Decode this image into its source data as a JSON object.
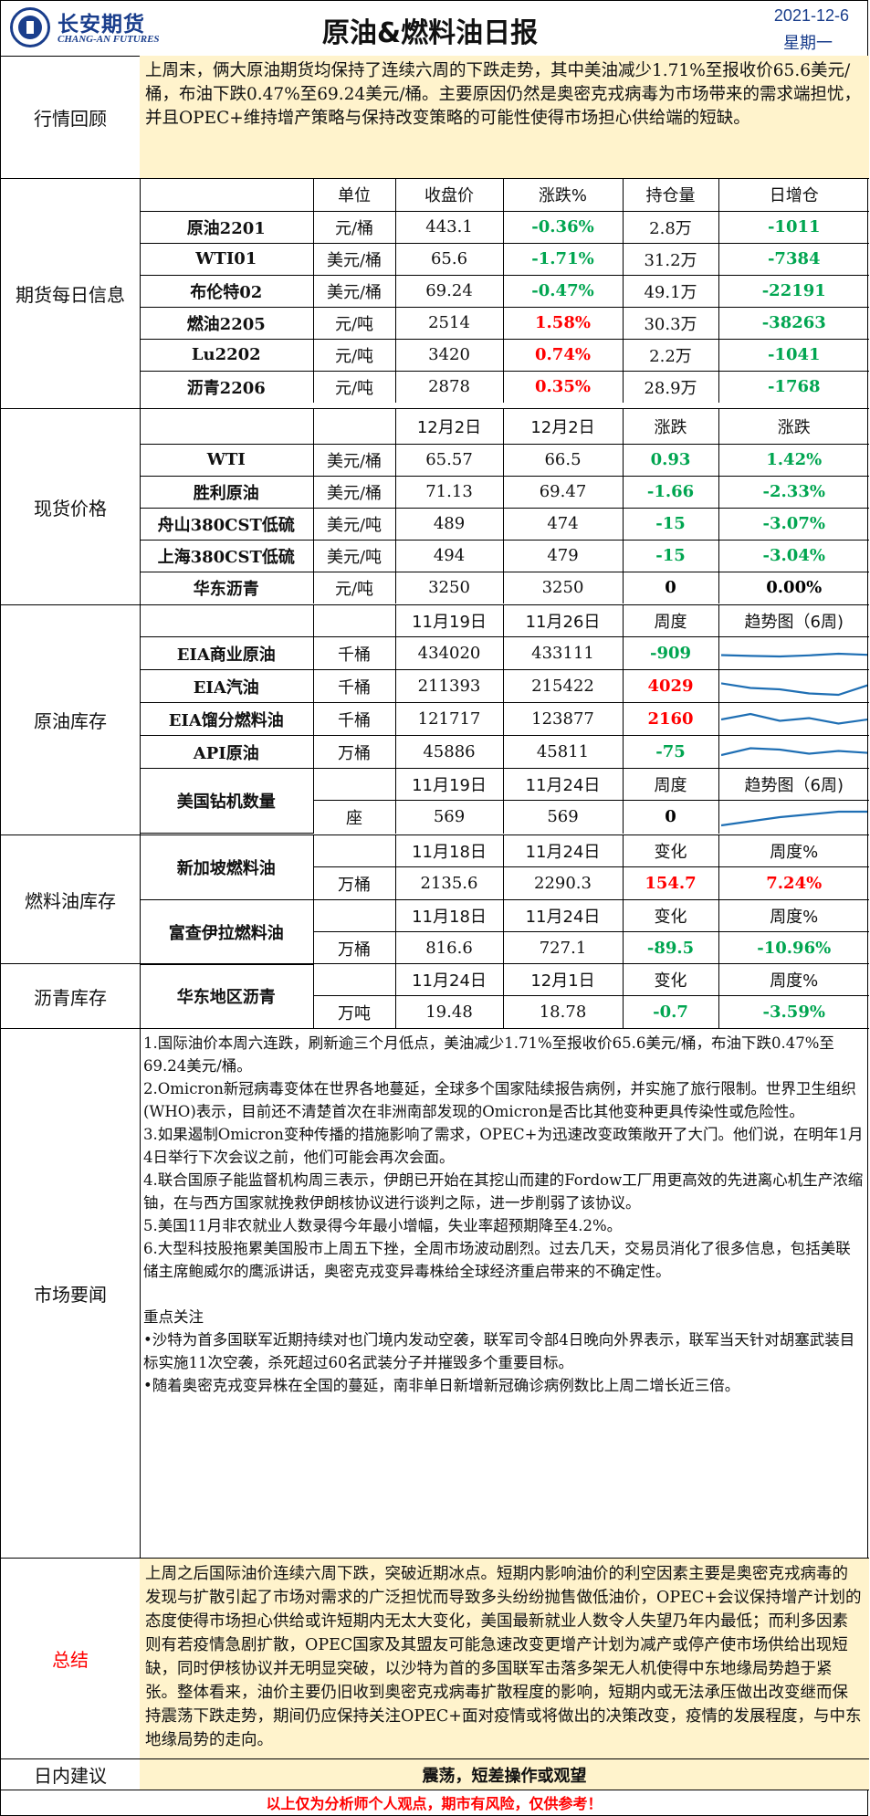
{
  "header": {
    "logo_cn": "长安期货",
    "logo_en": "CHANG-AN FUTURES",
    "title": "原油&燃料油日报",
    "date": "2021-12-6",
    "weekday": "星期一"
  },
  "review": {
    "label": "行情回顾",
    "text": "上周末，俩大原油期货均保持了连续六周的下跌走势，其中美油减少1.71%至报收价65.6美元/桶，布油下跌0.47%至69.24美元/桶。主要原因仍然是奥密克戎病毒为市场带来的需求端担忧，并且OPEC+维持增产策略与保持改变策略的可能性使得市场担心供给端的短缺。"
  },
  "futures": {
    "label": "期货每日信息",
    "headers": [
      "",
      "单位",
      "收盘价",
      "涨跌%",
      "持仓量",
      "日增仓"
    ],
    "rows": [
      {
        "name": "原油2201",
        "unit": "元/桶",
        "close": "443.1",
        "chg": "-0.36%",
        "oi": "2.8万",
        "doi": "-1011"
      },
      {
        "name": "WTI01",
        "unit": "美元/桶",
        "close": "65.6",
        "chg": "-1.71%",
        "oi": "31.2万",
        "doi": "-7384"
      },
      {
        "name": "布伦特02",
        "unit": "美元/桶",
        "close": "69.24",
        "chg": "-0.47%",
        "oi": "49.1万",
        "doi": "-22191"
      },
      {
        "name": "燃油2205",
        "unit": "元/吨",
        "close": "2514",
        "chg": "1.58%",
        "oi": "30.3万",
        "doi": "-38263"
      },
      {
        "name": "Lu2202",
        "unit": "元/吨",
        "close": "3420",
        "chg": "0.74%",
        "oi": "2.2万",
        "doi": "-1041"
      },
      {
        "name": "沥青2206",
        "unit": "元/吨",
        "close": "2878",
        "chg": "0.35%",
        "oi": "28.9万",
        "doi": "-1768"
      }
    ]
  },
  "spot": {
    "label": "现货价格",
    "headers": [
      "",
      "",
      "12月2日",
      "12月2日",
      "涨跌",
      "涨跌"
    ],
    "rows": [
      {
        "name": "WTI",
        "unit": "美元/桶",
        "p1": "65.57",
        "p2": "66.5",
        "chg": "0.93",
        "pct": "1.42%"
      },
      {
        "name": "胜利原油",
        "unit": "美元/桶",
        "p1": "71.13",
        "p2": "69.47",
        "chg": "-1.66",
        "pct": "-2.33%"
      },
      {
        "name": "舟山380CST低硫",
        "unit": "美元/吨",
        "p1": "489",
        "p2": "474",
        "chg": "-15",
        "pct": "-3.07%"
      },
      {
        "name": "上海380CST低硫",
        "unit": "美元/吨",
        "p1": "494",
        "p2": "479",
        "chg": "-15",
        "pct": "-3.04%"
      },
      {
        "name": "华东沥青",
        "unit": "元/吨",
        "p1": "3250",
        "p2": "3250",
        "chg": "0",
        "pct": "0.00%"
      }
    ]
  },
  "crude_inv": {
    "label": "原油库存",
    "headers": [
      "",
      "",
      "11月19日",
      "11月26日",
      "周度",
      "趋势图（6周)"
    ],
    "rows": [
      {
        "name": "EIA商业原油",
        "unit": "千桶",
        "v1": "434020",
        "v2": "433111",
        "wk": "-909",
        "trend": [
          0.45,
          0.42,
          0.4,
          0.44,
          0.5,
          0.46
        ]
      },
      {
        "name": "EIA汽油",
        "unit": "千桶",
        "v1": "211393",
        "v2": "215422",
        "wk": "4029",
        "trend": [
          0.62,
          0.45,
          0.4,
          0.25,
          0.2,
          0.55
        ]
      },
      {
        "name": "EIA馏分燃料油",
        "unit": "千桶",
        "v1": "121717",
        "v2": "123877",
        "wk": "2160",
        "trend": [
          0.5,
          0.7,
          0.45,
          0.55,
          0.35,
          0.5
        ]
      },
      {
        "name": "API原油",
        "unit": "万桶",
        "v1": "45886",
        "v2": "45811",
        "wk": "-75",
        "trend": [
          0.4,
          0.65,
          0.6,
          0.45,
          0.55,
          0.48
        ]
      }
    ],
    "rig_name": "美国钻机数量",
    "rig_headers": [
      "11月19日",
      "11月24日",
      "周度",
      "趋势图（6周)"
    ],
    "rig": {
      "unit": "座",
      "v1": "569",
      "v2": "569",
      "wk": "0",
      "trend": [
        0.2,
        0.35,
        0.5,
        0.6,
        0.7,
        0.7
      ]
    }
  },
  "fuel_inv": {
    "label": "燃料油库存",
    "sg_name": "新加坡燃料油",
    "sg_headers": [
      "11月18日",
      "11月24日",
      "变化",
      "周度%"
    ],
    "sg": {
      "unit": "万桶",
      "v1": "2135.6",
      "v2": "2290.3",
      "chg": "154.7",
      "pct": "7.24%"
    },
    "fj_name": "富查伊拉燃料油",
    "fj_headers": [
      "11月18日",
      "11月24日",
      "变化",
      "周度%"
    ],
    "fj": {
      "unit": "万桶",
      "v1": "816.6",
      "v2": "727.1",
      "chg": "-89.5",
      "pct": "-10.96%"
    }
  },
  "asphalt_inv": {
    "label": "沥青库存",
    "name": "华东地区沥青",
    "headers": [
      "11月24日",
      "12月1日",
      "变化",
      "周度%"
    ],
    "row": {
      "unit": "万吨",
      "v1": "19.48",
      "v2": "18.78",
      "chg": "-0.7",
      "pct": "-3.59%"
    }
  },
  "news": {
    "label": "市场要闻",
    "items": [
      "1.国际油价本周六连跌，刷新逾三个月低点，美油减少1.71%至报收价65.6美元/桶，布油下跌0.47%至69.24美元/桶。",
      "2.Omicron新冠病毒变体在世界各地蔓延，全球多个国家陆续报告病例，并实施了旅行限制。世界卫生组织(WHO)表示，目前还不清楚首次在非洲南部发现的Omicron是否比其他变种更具传染性或危险性。",
      "3.如果遏制Omicron变种传播的措施影响了需求，OPEC+为迅速改变政策敞开了大门。他们说，在明年1月4日举行下次会议之前，他们可能会再次会面。",
      "4.联合国原子能监督机构周三表示，伊朗已开始在其挖山而建的Fordow工厂用更高效的先进离心机生产浓缩铀，在与西方国家就挽救伊朗核协议进行谈判之际，进一步削弱了该协议。",
      "5.美国11月非农就业人数录得今年最小增幅，失业率超预期降至4.2%。",
      "6.大型科技股拖累美国股市上周五下挫，全周市场波动剧烈。过去几天，交易员消化了很多信息，包括美联储主席鲍威尔的鹰派讲话，奥密克戎变异毒株给全球经济重启带来的不确定性。"
    ],
    "focus_title": "重点关注",
    "focus": [
      "•沙特为首多国联军近期持续对也门境内发动空袭，联军司令部4日晚向外界表示，联军当天针对胡塞武装目标实施11次空袭，杀死超过60名武装分子并摧毁多个重要目标。",
      "•随着奥密克戎变异株在全国的蔓延，南非单日新增新冠确诊病例数比上周二增长近三倍。"
    ]
  },
  "summary": {
    "label": "总结",
    "text": "上周之后国际油价连续六周下跌，突破近期冰点。短期内影响油价的利空因素主要是奥密克戎病毒的发现与扩散引起了市场对需求的广泛担忧而导致多头纷纷抛售做低油价，OPEC+会议保持增产计划的态度使得市场担心供给或许短期内无太大变化，美国最新就业人数令人失望乃年内最低；而利多因素则有若疫情急剧扩散，OPEC国家及其盟友可能急速改变更增产计划为减产或停产使市场供给出现短缺，同时伊核协议并无明显突破，以沙特为首的多国联军击落多架无人机使得中东地缘局势趋于紧张。整体看来，油价主要仍旧收到奥密克戎病毒扩散程度的影响，短期内或无法承压做出改变继而保持震荡下跌走势，期间仍应保持关注OPEC+面对疫情或将做出的决策改变，疫情的发展程度，与中东地缘局势的走向。"
  },
  "advice": {
    "label": "日内建议",
    "text": "震荡，短差操作或观望"
  },
  "footer": "以上仅为分析师个人观点，期市有风险，仅供参考！",
  "colors": {
    "brand": "#1a3e8c",
    "highlight_bg": "#fff3cc",
    "up": "#ff0000",
    "down": "#00a550",
    "spark": "#1f6fb4"
  }
}
